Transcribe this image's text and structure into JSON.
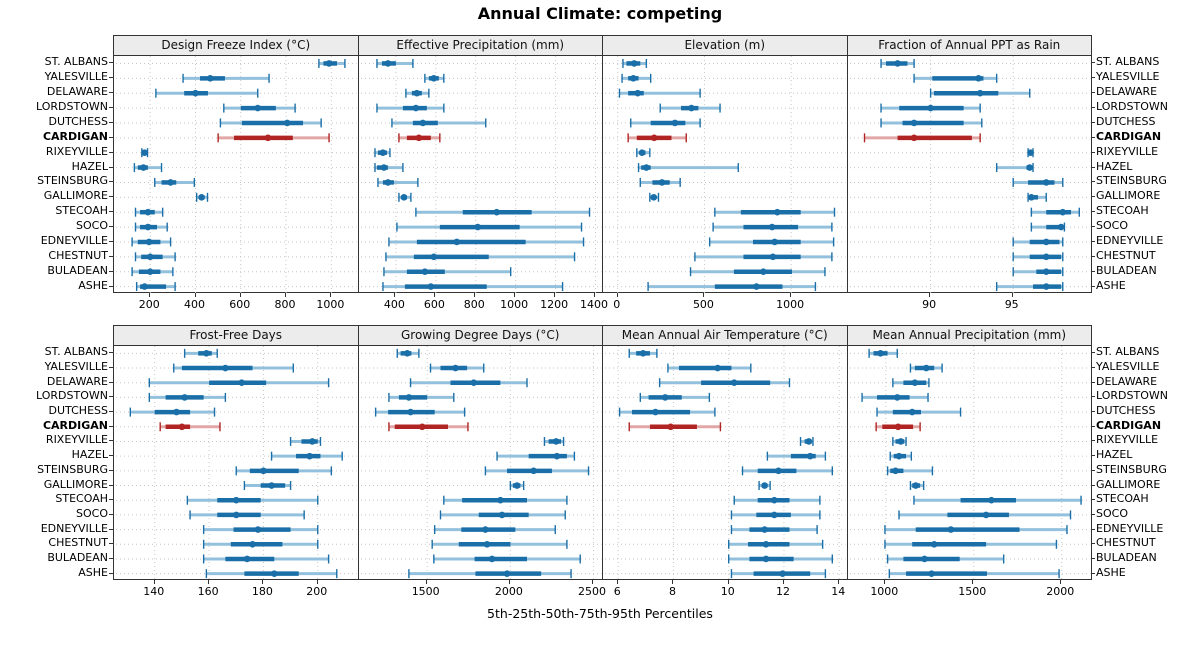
{
  "title": "Annual Climate: competing",
  "xlabel": "5th-25th-50th-75th-95th Percentiles",
  "highlight_site": "CARDIGAN",
  "colors": {
    "series": "#1b6fa8",
    "series_light": "#93c0dc",
    "highlight": "#b02423",
    "highlight_light": "#e0a7a6",
    "strip_bg": "#ececec",
    "panel_border": "#333333",
    "grid": "#c6c6c6",
    "text": "#000000"
  },
  "chart_data": {
    "type": "dotplot",
    "percentiles": [
      5,
      25,
      50,
      75,
      95
    ],
    "legend_note": "5th-25th-50th-75th-95th Percentiles",
    "sites": [
      "ST. ALBANS",
      "YALESVILLE",
      "DELAWARE",
      "LORDSTOWN",
      "DUTCHESS",
      "CARDIGAN",
      "RIXEYVILLE",
      "HAZEL",
      "STEINSBURG",
      "GALLIMORE",
      "STECOAH",
      "SOCO",
      "EDNEYVILLE",
      "CHESTNUT",
      "BULADEAN",
      "ASHE"
    ],
    "panels": [
      {
        "title": "Design Freeze Index (°C)",
        "ticks": [
          200,
          400,
          600,
          800,
          1000
        ],
        "xlim": [
          40,
          1120
        ],
        "values": [
          [
            945,
            965,
            990,
            1025,
            1060
          ],
          [
            345,
            420,
            465,
            530,
            725
          ],
          [
            225,
            350,
            400,
            455,
            675
          ],
          [
            525,
            600,
            675,
            755,
            840
          ],
          [
            510,
            605,
            805,
            875,
            955
          ],
          [
            500,
            570,
            720,
            830,
            990
          ],
          [
            163,
            170,
            175,
            181,
            188
          ],
          [
            130,
            145,
            170,
            190,
            250
          ],
          [
            220,
            250,
            290,
            315,
            395
          ],
          [
            405,
            415,
            427,
            440,
            453
          ],
          [
            135,
            155,
            190,
            220,
            255
          ],
          [
            135,
            155,
            190,
            230,
            275
          ],
          [
            120,
            145,
            195,
            245,
            290
          ],
          [
            135,
            160,
            200,
            255,
            310
          ],
          [
            120,
            150,
            200,
            245,
            300
          ],
          [
            140,
            155,
            175,
            270,
            310
          ]
        ]
      },
      {
        "title": "Effective Precipitation (mm)",
        "ticks": [
          400,
          600,
          800,
          1000,
          1200,
          1400
        ],
        "xlim": [
          215,
          1440
        ],
        "values": [
          [
            305,
            330,
            360,
            400,
            485
          ],
          [
            545,
            565,
            590,
            615,
            640
          ],
          [
            450,
            480,
            505,
            530,
            565
          ],
          [
            305,
            435,
            500,
            555,
            640
          ],
          [
            380,
            485,
            535,
            610,
            850
          ],
          [
            415,
            455,
            515,
            575,
            620
          ],
          [
            295,
            310,
            335,
            355,
            370
          ],
          [
            295,
            305,
            340,
            360,
            435
          ],
          [
            310,
            335,
            360,
            390,
            510
          ],
          [
            415,
            430,
            440,
            455,
            475
          ],
          [
            500,
            735,
            905,
            1080,
            1370
          ],
          [
            405,
            620,
            810,
            1020,
            1330
          ],
          [
            365,
            505,
            705,
            1050,
            1340
          ],
          [
            350,
            490,
            590,
            865,
            1295
          ],
          [
            340,
            455,
            545,
            645,
            975
          ],
          [
            335,
            445,
            575,
            855,
            1235
          ]
        ]
      },
      {
        "title": "Elevation (m)",
        "ticks": [
          0,
          500,
          1000
        ],
        "xlim": [
          -85,
          1325
        ],
        "values": [
          [
            30,
            50,
            95,
            130,
            165
          ],
          [
            25,
            60,
            90,
            120,
            190
          ],
          [
            10,
            60,
            115,
            150,
            475
          ],
          [
            245,
            365,
            425,
            465,
            590
          ],
          [
            75,
            190,
            330,
            390,
            475
          ],
          [
            60,
            110,
            210,
            310,
            395
          ],
          [
            110,
            125,
            140,
            160,
            185
          ],
          [
            120,
            135,
            165,
            190,
            695
          ],
          [
            130,
            200,
            255,
            300,
            360
          ],
          [
            185,
            192,
            208,
            220,
            235
          ],
          [
            560,
            710,
            920,
            1055,
            1250
          ],
          [
            550,
            725,
            890,
            1040,
            1235
          ],
          [
            530,
            780,
            905,
            1055,
            1245
          ],
          [
            445,
            725,
            895,
            1055,
            1235
          ],
          [
            420,
            670,
            840,
            1005,
            1195
          ],
          [
            175,
            560,
            800,
            950,
            1140
          ]
        ]
      },
      {
        "title": "Fraction of Annual PPT as Rain",
        "ticks": [
          90,
          95
        ],
        "xlim": [
          85,
          99.8
        ],
        "values": [
          [
            87.0,
            87.3,
            88.0,
            88.6,
            89.0
          ],
          [
            89.0,
            90.1,
            92.9,
            93.2,
            94.0
          ],
          [
            90.0,
            90.2,
            93.0,
            94.1,
            96.0
          ],
          [
            87.0,
            88.1,
            90.0,
            92.0,
            93.0
          ],
          [
            87.0,
            88.3,
            89.0,
            92.0,
            93.1
          ],
          [
            86.0,
            88.0,
            89.0,
            92.5,
            93.0
          ],
          [
            95.9,
            96.0,
            96.05,
            96.1,
            96.2
          ],
          [
            94.0,
            95.8,
            96.0,
            96.1,
            96.2
          ],
          [
            95.0,
            95.9,
            97.0,
            97.5,
            98.0
          ],
          [
            95.9,
            96.0,
            96.1,
            96.5,
            97.0
          ],
          [
            96.1,
            97.0,
            98.0,
            98.5,
            99.0
          ],
          [
            96.1,
            97.0,
            97.9,
            98.0,
            98.1
          ],
          [
            95.0,
            96.0,
            97.0,
            97.8,
            98.0
          ],
          [
            95.0,
            96.0,
            97.0,
            97.9,
            98.0
          ],
          [
            95.0,
            96.4,
            97.0,
            97.9,
            98.0
          ],
          [
            94.0,
            96.2,
            97.0,
            97.9,
            98.0
          ]
        ]
      },
      {
        "title": "Frost-Free Days",
        "ticks": [
          140,
          160,
          180,
          200
        ],
        "xlim": [
          125,
          215
        ],
        "values": [
          [
            151,
            156,
            159,
            161,
            163
          ],
          [
            147,
            150,
            166,
            176,
            191
          ],
          [
            138,
            160,
            172,
            181,
            204
          ],
          [
            138,
            144,
            151,
            158,
            166
          ],
          [
            131,
            140,
            148,
            153,
            162
          ],
          [
            142,
            144,
            150,
            153,
            164
          ],
          [
            190,
            194,
            198,
            200,
            201
          ],
          [
            183,
            192,
            197,
            201,
            209
          ],
          [
            170,
            175,
            180,
            193,
            205
          ],
          [
            173,
            179,
            183,
            188,
            190
          ],
          [
            152,
            163,
            170,
            179,
            200
          ],
          [
            153,
            163,
            170,
            179,
            195
          ],
          [
            158,
            169,
            178,
            190,
            200
          ],
          [
            158,
            168,
            176,
            187,
            200
          ],
          [
            158,
            166,
            174,
            184,
            204
          ],
          [
            159,
            173,
            184,
            193,
            207
          ]
        ]
      },
      {
        "title": "Growing Degree Days (°C)",
        "ticks": [
          1500,
          2000,
          2500
        ],
        "xlim": [
          1090,
          2560
        ],
        "values": [
          [
            1320,
            1340,
            1380,
            1405,
            1450
          ],
          [
            1520,
            1580,
            1670,
            1740,
            1840
          ],
          [
            1400,
            1640,
            1780,
            1940,
            2100
          ],
          [
            1270,
            1330,
            1390,
            1500,
            1660
          ],
          [
            1190,
            1265,
            1400,
            1545,
            1725
          ],
          [
            1270,
            1305,
            1470,
            1625,
            1745
          ],
          [
            2205,
            2230,
            2275,
            2305,
            2320
          ],
          [
            1920,
            2110,
            2280,
            2340,
            2385
          ],
          [
            1850,
            1980,
            2140,
            2250,
            2470
          ],
          [
            2000,
            2015,
            2040,
            2060,
            2080
          ],
          [
            1600,
            1710,
            1940,
            2100,
            2340
          ],
          [
            1580,
            1810,
            1950,
            2110,
            2330
          ],
          [
            1545,
            1705,
            1850,
            2030,
            2270
          ],
          [
            1530,
            1690,
            1860,
            2000,
            2340
          ],
          [
            1540,
            1785,
            1890,
            2100,
            2420
          ],
          [
            1390,
            1790,
            1980,
            2185,
            2365
          ]
        ]
      },
      {
        "title": "Mean Annual Air Temperature (°C)",
        "ticks": [
          6,
          8,
          10,
          12,
          14
        ],
        "xlim": [
          5.45,
          14.3
        ],
        "values": [
          [
            6.4,
            6.65,
            6.9,
            7.15,
            7.4
          ],
          [
            7.8,
            8.2,
            9.6,
            10.1,
            10.8
          ],
          [
            7.5,
            9.0,
            10.2,
            11.5,
            12.2
          ],
          [
            6.8,
            7.1,
            7.7,
            8.3,
            9.3
          ],
          [
            6.05,
            6.5,
            7.35,
            8.6,
            9.5
          ],
          [
            6.4,
            7.15,
            7.9,
            8.85,
            9.7
          ],
          [
            12.6,
            12.75,
            12.9,
            13.0,
            13.05
          ],
          [
            11.4,
            12.25,
            12.95,
            13.15,
            13.5
          ],
          [
            10.5,
            11.05,
            11.8,
            12.45,
            13.75
          ],
          [
            11.1,
            11.2,
            11.3,
            11.4,
            11.5
          ],
          [
            10.2,
            11.05,
            11.65,
            12.2,
            13.3
          ],
          [
            10.1,
            11.0,
            11.65,
            12.25,
            13.3
          ],
          [
            10.1,
            10.75,
            11.3,
            12.2,
            13.2
          ],
          [
            10.0,
            10.7,
            11.35,
            12.2,
            13.4
          ],
          [
            10.0,
            10.75,
            11.35,
            12.35,
            13.75
          ],
          [
            10.1,
            10.9,
            11.95,
            12.95,
            13.5
          ]
        ]
      },
      {
        "title": "Mean Annual Precipitation (mm)",
        "ticks": [
          1000,
          1500,
          2000
        ],
        "xlim": [
          785,
          2175
        ],
        "values": [
          [
            905,
            930,
            970,
            1010,
            1065
          ],
          [
            1140,
            1165,
            1230,
            1275,
            1320
          ],
          [
            1040,
            1100,
            1165,
            1230,
            1245
          ],
          [
            865,
            950,
            1065,
            1135,
            1240
          ],
          [
            950,
            1040,
            1150,
            1200,
            1425
          ],
          [
            945,
            980,
            1070,
            1155,
            1195
          ],
          [
            1040,
            1055,
            1085,
            1105,
            1115
          ],
          [
            1025,
            1045,
            1075,
            1115,
            1145
          ],
          [
            1010,
            1025,
            1055,
            1100,
            1265
          ],
          [
            1140,
            1150,
            1170,
            1195,
            1215
          ],
          [
            1160,
            1425,
            1600,
            1740,
            2110
          ],
          [
            1075,
            1350,
            1570,
            1700,
            2050
          ],
          [
            995,
            1170,
            1370,
            1760,
            2030
          ],
          [
            995,
            1150,
            1275,
            1570,
            1970
          ],
          [
            1010,
            1100,
            1220,
            1420,
            1670
          ],
          [
            1020,
            1115,
            1260,
            1575,
            1985
          ]
        ]
      }
    ]
  }
}
